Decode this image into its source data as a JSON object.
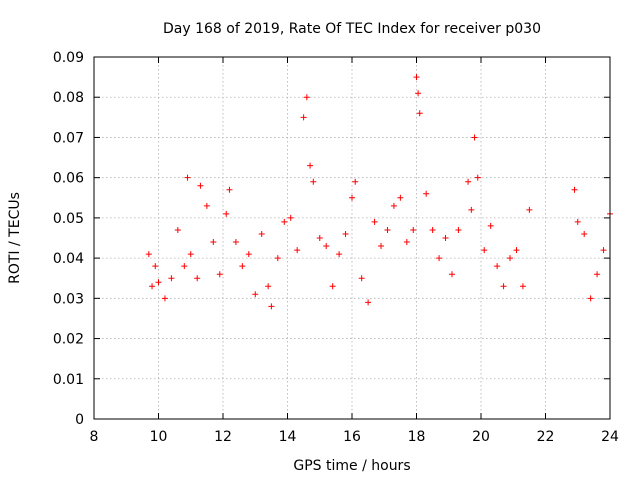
{
  "chart_data": {
    "type": "scatter",
    "title": "Day 168 of 2019, Rate Of TEC Index for receiver p030",
    "xlabel": "GPS time / hours",
    "ylabel": "ROTI / TECUs",
    "xlim": [
      8,
      24
    ],
    "ylim": [
      0,
      0.09
    ],
    "x_ticks": [
      "8",
      "10",
      "12",
      "14",
      "16",
      "18",
      "20",
      "22",
      "24"
    ],
    "y_ticks": [
      "0",
      "0.01",
      "0.02",
      "0.03",
      "0.04",
      "0.05",
      "0.06",
      "0.07",
      "0.08",
      "0.09"
    ],
    "grid": true,
    "marker": "+",
    "color": "#ff0000",
    "series": [
      {
        "x": [
          9.7,
          9.8,
          9.9,
          10.0,
          10.2,
          10.4,
          10.6,
          10.8,
          10.9,
          11.0,
          11.2,
          11.3,
          11.5,
          11.7,
          11.9,
          12.1,
          12.2,
          12.4,
          12.6,
          12.8,
          13.0,
          13.2,
          13.4,
          13.5,
          13.7,
          13.9,
          14.1,
          14.3,
          14.5,
          14.6,
          14.7,
          14.8,
          15.0,
          15.2,
          15.4,
          15.6,
          15.8,
          16.0,
          16.1,
          16.3,
          16.5,
          16.7,
          16.9,
          17.1,
          17.3,
          17.5,
          17.7,
          17.9,
          18.0,
          18.05,
          18.1,
          18.3,
          18.5,
          18.7,
          18.9,
          19.1,
          19.3,
          19.6,
          19.7,
          19.8,
          19.9,
          20.1,
          20.3,
          20.5,
          20.7,
          20.9,
          21.1,
          21.3,
          21.5,
          22.9,
          23.0,
          23.2,
          23.4,
          23.6,
          23.8,
          24.0
        ],
        "y": [
          0.041,
          0.033,
          0.038,
          0.034,
          0.03,
          0.035,
          0.047,
          0.038,
          0.06,
          0.041,
          0.035,
          0.058,
          0.053,
          0.044,
          0.036,
          0.051,
          0.057,
          0.044,
          0.038,
          0.041,
          0.031,
          0.046,
          0.033,
          0.028,
          0.04,
          0.049,
          0.05,
          0.042,
          0.075,
          0.08,
          0.063,
          0.059,
          0.045,
          0.043,
          0.033,
          0.041,
          0.046,
          0.055,
          0.059,
          0.035,
          0.029,
          0.049,
          0.043,
          0.047,
          0.053,
          0.055,
          0.044,
          0.047,
          0.085,
          0.081,
          0.076,
          0.056,
          0.047,
          0.04,
          0.045,
          0.036,
          0.047,
          0.059,
          0.052,
          0.07,
          0.06,
          0.042,
          0.048,
          0.038,
          0.033,
          0.04,
          0.042,
          0.033,
          0.052,
          0.057,
          0.049,
          0.046,
          0.03,
          0.036,
          0.042,
          0.051
        ]
      }
    ]
  }
}
